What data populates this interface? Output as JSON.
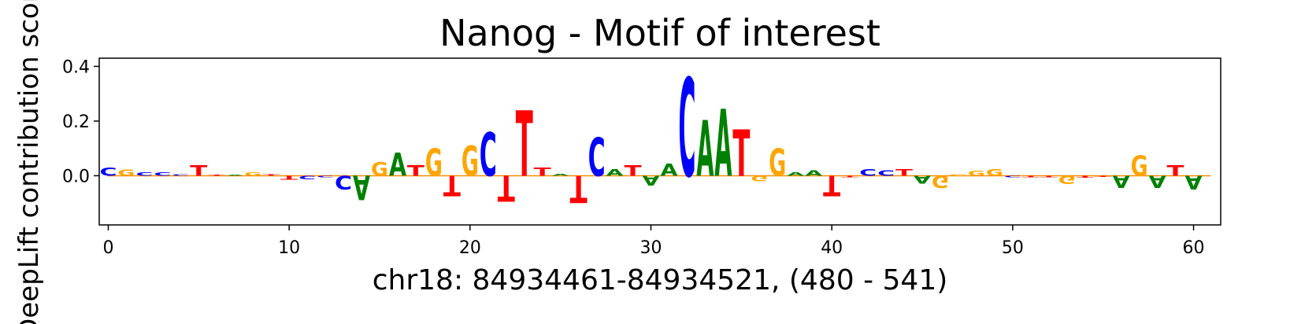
{
  "chart_data": {
    "type": "sequence-logo",
    "title": "Nanog - Motif of interest",
    "xlabel": "chr18: 84934461-84934521, (480 - 541)",
    "ylabel": "DeepLift contribution score",
    "xlim": [
      -0.5,
      61.5
    ],
    "ylim": [
      -0.18,
      0.43
    ],
    "xticks": [
      0,
      10,
      20,
      30,
      40,
      50,
      60
    ],
    "xtick_labels": [
      "0",
      "10",
      "20",
      "30",
      "40",
      "50",
      "60"
    ],
    "yticks": [
      0.0,
      0.2,
      0.4
    ],
    "ytick_labels": [
      "0.0",
      "0.2",
      "0.4"
    ],
    "grid": false,
    "colors": {
      "A": "#008000",
      "C": "#0000ff",
      "G": "#ffa500",
      "T": "#ff0000"
    },
    "positions": [
      {
        "pos": 0,
        "base": "C",
        "score": 0.03
      },
      {
        "pos": 1,
        "base": "G",
        "score": 0.022
      },
      {
        "pos": 2,
        "base": "C",
        "score": 0.012
      },
      {
        "pos": 3,
        "base": "C",
        "score": 0.012
      },
      {
        "pos": 4,
        "base": "C",
        "score": 0.006
      },
      {
        "pos": 5,
        "base": "T",
        "score": 0.04
      },
      {
        "pos": 6,
        "base": "T",
        "score": 0.004
      },
      {
        "pos": 7,
        "base": "A",
        "score": 0.004
      },
      {
        "pos": 8,
        "base": "G",
        "score": 0.012
      },
      {
        "pos": 9,
        "base": "T",
        "score": 0.006
      },
      {
        "pos": 10,
        "base": "T",
        "score": -0.015
      },
      {
        "pos": 11,
        "base": "C",
        "score": -0.012
      },
      {
        "pos": 12,
        "base": "C",
        "score": -0.005
      },
      {
        "pos": 13,
        "base": "C",
        "score": -0.05
      },
      {
        "pos": 14,
        "base": "A",
        "score": -0.09
      },
      {
        "pos": 15,
        "base": "G",
        "score": 0.05
      },
      {
        "pos": 16,
        "base": "A",
        "score": 0.085
      },
      {
        "pos": 17,
        "base": "T",
        "score": 0.04
      },
      {
        "pos": 18,
        "base": "G",
        "score": 0.1
      },
      {
        "pos": 19,
        "base": "T",
        "score": -0.075
      },
      {
        "pos": 20,
        "base": "G",
        "score": 0.11
      },
      {
        "pos": 21,
        "base": "C",
        "score": 0.16
      },
      {
        "pos": 22,
        "base": "T",
        "score": -0.095
      },
      {
        "pos": 23,
        "base": "T",
        "score": 0.24
      },
      {
        "pos": 24,
        "base": "T",
        "score": 0.03
      },
      {
        "pos": 25,
        "base": "A",
        "score": 0.008
      },
      {
        "pos": 26,
        "base": "T",
        "score": -0.1
      },
      {
        "pos": 27,
        "base": "C",
        "score": 0.14
      },
      {
        "pos": 28,
        "base": "A",
        "score": 0.025
      },
      {
        "pos": 29,
        "base": "T",
        "score": 0.04
      },
      {
        "pos": 30,
        "base": "A",
        "score": -0.035
      },
      {
        "pos": 31,
        "base": "A",
        "score": 0.045
      },
      {
        "pos": 32,
        "base": "C",
        "score": 0.36
      },
      {
        "pos": 33,
        "base": "A",
        "score": 0.205
      },
      {
        "pos": 34,
        "base": "A",
        "score": 0.245
      },
      {
        "pos": 35,
        "base": "T",
        "score": 0.17
      },
      {
        "pos": 36,
        "base": "G",
        "score": -0.02
      },
      {
        "pos": 37,
        "base": "G",
        "score": 0.1
      },
      {
        "pos": 38,
        "base": "A",
        "score": 0.012
      },
      {
        "pos": 39,
        "base": "A",
        "score": 0.02
      },
      {
        "pos": 40,
        "base": "T",
        "score": -0.075
      },
      {
        "pos": 41,
        "base": "T",
        "score": -0.006
      },
      {
        "pos": 42,
        "base": "C",
        "score": 0.025
      },
      {
        "pos": 43,
        "base": "C",
        "score": 0.02
      },
      {
        "pos": 44,
        "base": "T",
        "score": 0.025
      },
      {
        "pos": 45,
        "base": "A",
        "score": -0.028
      },
      {
        "pos": 46,
        "base": "G",
        "score": -0.045
      },
      {
        "pos": 47,
        "base": "G",
        "score": 0.006
      },
      {
        "pos": 48,
        "base": "G",
        "score": 0.018
      },
      {
        "pos": 49,
        "base": "G",
        "score": 0.025
      },
      {
        "pos": 50,
        "base": "C",
        "score": -0.005
      },
      {
        "pos": 51,
        "base": "T",
        "score": -0.006
      },
      {
        "pos": 52,
        "base": "T",
        "score": -0.006
      },
      {
        "pos": 53,
        "base": "G",
        "score": -0.03
      },
      {
        "pos": 54,
        "base": "T",
        "score": -0.008
      },
      {
        "pos": 55,
        "base": "T",
        "score": -0.004
      },
      {
        "pos": 56,
        "base": "A",
        "score": -0.045
      },
      {
        "pos": 57,
        "base": "G",
        "score": 0.075
      },
      {
        "pos": 58,
        "base": "A",
        "score": -0.045
      },
      {
        "pos": 59,
        "base": "T",
        "score": 0.04
      },
      {
        "pos": 60,
        "base": "A",
        "score": -0.05
      }
    ]
  }
}
